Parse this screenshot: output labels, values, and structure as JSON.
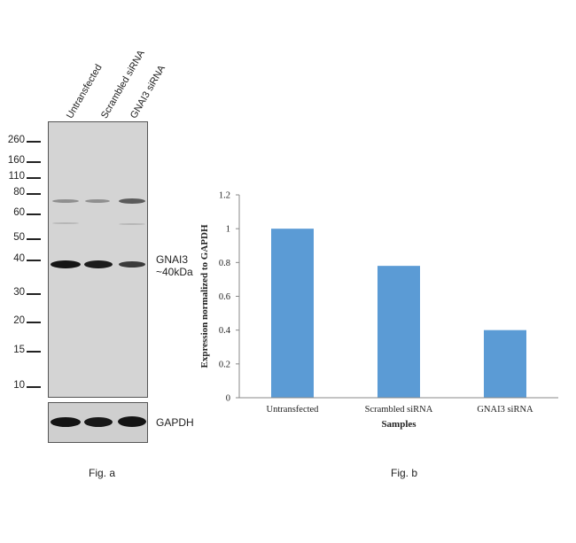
{
  "figure_a": {
    "lanes": [
      "Untransfected",
      "Scrambled siRNA",
      "GNAI3 siRNA"
    ],
    "markers": [
      "260",
      "160",
      "110",
      "80",
      "60",
      "50",
      "40",
      "30",
      "20",
      "15",
      "10"
    ],
    "target_label_line1": "GNAI3",
    "target_label_line2": "~40kDa",
    "loading_label": "GAPDH",
    "caption": "Fig. a"
  },
  "figure_b": {
    "caption": "Fig. b"
  },
  "chart_data": {
    "type": "bar",
    "categories": [
      "Untransfected",
      "Scrambled siRNA",
      "GNAI3 siRNA"
    ],
    "values": [
      1.0,
      0.78,
      0.4
    ],
    "xlabel": "Samples",
    "ylabel": "Expression normalized to GAPDH",
    "ylim": [
      0,
      1.2
    ],
    "yticks": [
      "0",
      "0.2",
      "0.4",
      "0.6",
      "0.8",
      "1",
      "1.2"
    ],
    "grid": false,
    "bar_color": "#5b9bd5"
  }
}
